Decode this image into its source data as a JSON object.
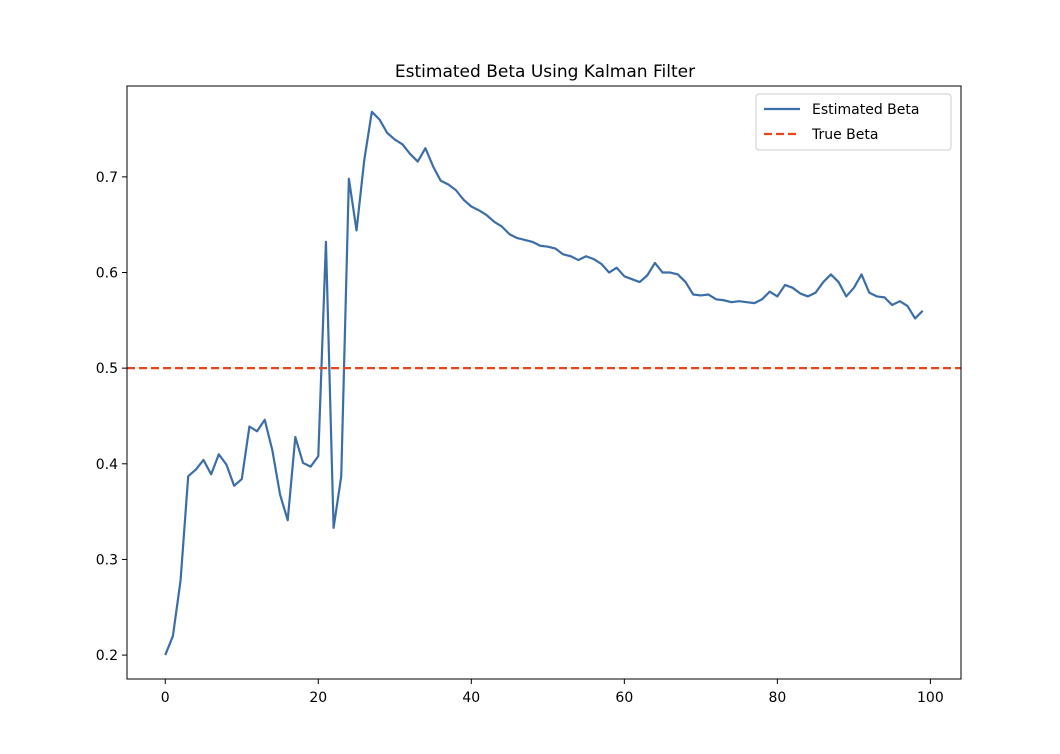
{
  "chart_data": {
    "type": "line",
    "title": "Estimated Beta Using Kalman Filter",
    "xlabel": "",
    "ylabel": "",
    "xlim": [
      -5,
      104
    ],
    "ylim": [
      0.175,
      0.795
    ],
    "x_ticks": [
      0,
      20,
      40,
      60,
      80,
      100
    ],
    "y_ticks": [
      0.2,
      0.3,
      0.4,
      0.5,
      0.6,
      0.7
    ],
    "grid": false,
    "legend_position": "top-right",
    "series": [
      {
        "name": "Estimated Beta",
        "color": "#3b6ea8",
        "style": "solid",
        "x": [
          0,
          1,
          2,
          3,
          4,
          5,
          6,
          7,
          8,
          9,
          10,
          11,
          12,
          13,
          14,
          15,
          16,
          17,
          18,
          19,
          20,
          21,
          22,
          23,
          24,
          25,
          26,
          27,
          28,
          29,
          30,
          31,
          32,
          33,
          34,
          35,
          36,
          37,
          38,
          39,
          40,
          41,
          42,
          43,
          44,
          45,
          46,
          47,
          48,
          49,
          50,
          51,
          52,
          53,
          54,
          55,
          56,
          57,
          58,
          59,
          60,
          61,
          62,
          63,
          64,
          65,
          66,
          67,
          68,
          69,
          70,
          71,
          72,
          73,
          74,
          75,
          76,
          77,
          78,
          79,
          80,
          81,
          82,
          83,
          84,
          85,
          86,
          87,
          88,
          89,
          90,
          91,
          92,
          93,
          94,
          95,
          96,
          97,
          98,
          99
        ],
        "y": [
          0.2,
          0.22,
          0.278,
          0.387,
          0.394,
          0.404,
          0.389,
          0.41,
          0.399,
          0.377,
          0.384,
          0.439,
          0.434,
          0.446,
          0.414,
          0.368,
          0.341,
          0.428,
          0.401,
          0.397,
          0.408,
          0.632,
          0.333,
          0.387,
          0.698,
          0.644,
          0.717,
          0.768,
          0.76,
          0.746,
          0.739,
          0.734,
          0.724,
          0.716,
          0.73,
          0.711,
          0.696,
          0.692,
          0.686,
          0.676,
          0.669,
          0.665,
          0.66,
          0.653,
          0.648,
          0.64,
          0.636,
          0.634,
          0.632,
          0.628,
          0.627,
          0.625,
          0.619,
          0.617,
          0.613,
          0.617,
          0.614,
          0.609,
          0.6,
          0.605,
          0.596,
          0.593,
          0.59,
          0.597,
          0.61,
          0.6,
          0.6,
          0.598,
          0.59,
          0.577,
          0.576,
          0.577,
          0.572,
          0.571,
          0.569,
          0.57,
          0.569,
          0.568,
          0.572,
          0.58,
          0.575,
          0.587,
          0.584,
          0.578,
          0.575,
          0.579,
          0.59,
          0.598,
          0.59,
          0.575,
          0.584,
          0.598,
          0.579,
          0.575,
          0.574,
          0.566,
          0.57,
          0.565,
          0.552,
          0.56
        ]
      },
      {
        "name": "True Beta",
        "color": "#e8451c",
        "style": "dashed",
        "constant": 0.5
      }
    ]
  }
}
